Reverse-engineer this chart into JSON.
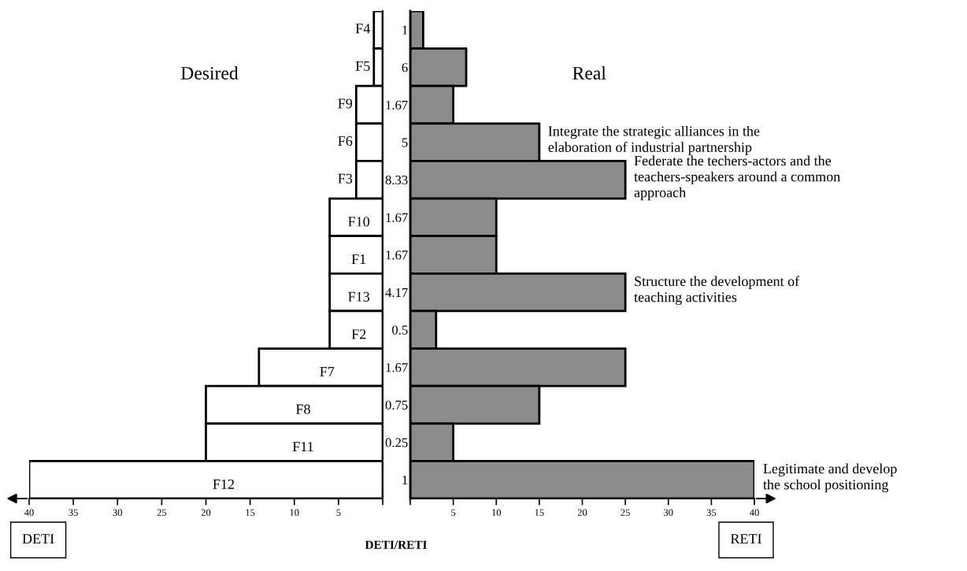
{
  "chart_data": [
    {
      "type": "bar",
      "orientation": "horizontal",
      "title": "Desired",
      "xlabel": "DETI",
      "categories": [
        "F4",
        "F5",
        "F9",
        "F6",
        "F3",
        "F10",
        "F1",
        "F13",
        "F2",
        "F7",
        "F8",
        "F11",
        "F12"
      ],
      "series": [
        {
          "color": "#ffffff",
          "values": [
            1,
            1,
            3,
            3,
            3,
            6,
            6,
            6,
            6,
            14,
            20,
            20,
            40
          ]
        }
      ],
      "xlim": [
        40,
        0
      ],
      "xticks": [
        40,
        35,
        30,
        25,
        20,
        15,
        10,
        5,
        {
          "value": 0,
          "label": null
        }
      ],
      "grid": false
    },
    {
      "type": "bar",
      "orientation": "horizontal",
      "title": "Real",
      "xlabel": "RETI",
      "categories": [
        "1",
        "6",
        "1.67",
        "5",
        "8.33",
        "1.67",
        "1.67",
        "4.17",
        "0.5",
        "1.67",
        "0.75",
        "0.25",
        "1"
      ],
      "series": [
        {
          "color": "#8c8c8c",
          "values": [
            1.5,
            6.5,
            5,
            15,
            25,
            10,
            10,
            25,
            3,
            25,
            15,
            5,
            40
          ]
        }
      ],
      "xlim": [
        0,
        40
      ],
      "xticks": [
        {
          "value": 0,
          "label": null
        },
        5,
        10,
        15,
        20,
        25,
        30,
        35,
        40
      ],
      "grid": false,
      "annotations": [
        "Integrate the strategic alliances in the\nelaboration of industrial partnership",
        "Federate the techers-actors and the\nteachers-speakers around a common\napproach",
        "Structure the development of\nteaching activities",
        "Legitimate and develop\nthe school positioning",
        "DETI/RETI"
      ]
    }
  ]
}
